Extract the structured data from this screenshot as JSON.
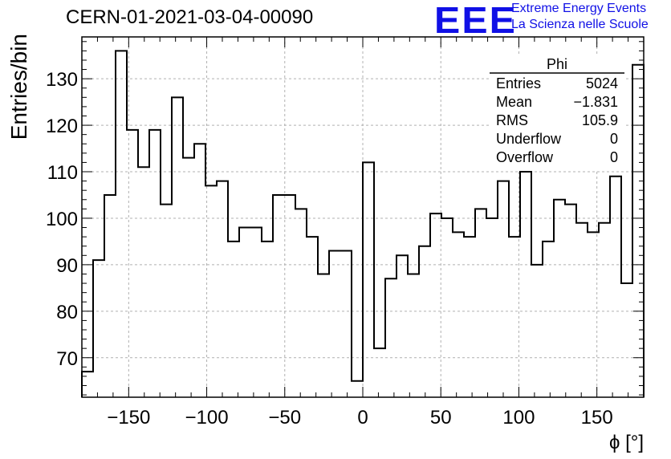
{
  "header": {
    "run_id": "CERN-01-2021-03-04-00090",
    "logo_text": "EEE",
    "logo_line1": "Extreme Energy Events",
    "logo_line2": "La Scienza nelle Scuole",
    "logo_color": "#1010e6"
  },
  "stats_box": {
    "title": "Phi",
    "rows": [
      {
        "label": "Entries",
        "value": "5024"
      },
      {
        "label": "Mean",
        "value": "−1.831"
      },
      {
        "label": "RMS",
        "value": "105.9"
      },
      {
        "label": "Underflow",
        "value": "0"
      },
      {
        "label": "Overflow",
        "value": "0"
      }
    ]
  },
  "chart_data": {
    "type": "bar",
    "style": "step-histogram",
    "title": "",
    "xlabel": "ϕ [°]",
    "ylabel": "Entries/bin",
    "xlim": [
      -180,
      180
    ],
    "ylim": [
      61.5,
      139
    ],
    "bin_edges_start": -180,
    "bin_width": 7.2,
    "values": [
      67,
      91,
      105,
      136,
      119,
      111,
      119,
      103,
      126,
      113,
      116,
      107,
      108,
      95,
      98,
      98,
      95,
      105,
      105,
      102,
      96,
      88,
      93,
      93,
      65,
      112,
      72,
      87,
      92,
      88,
      94,
      101,
      100,
      97,
      96,
      102,
      100,
      108,
      96,
      110,
      90,
      95,
      104,
      103,
      99,
      97,
      99,
      109,
      86,
      133
    ],
    "xticks": [
      -150,
      -100,
      -50,
      0,
      50,
      100,
      150
    ],
    "xtick_labels": [
      "−150",
      "−100",
      "−50",
      "0",
      "50",
      "100",
      "150"
    ],
    "yticks": [
      70,
      80,
      90,
      100,
      110,
      120,
      130
    ],
    "ytick_labels": [
      "70",
      "80",
      "90",
      "100",
      "110",
      "120",
      "130"
    ],
    "grid": true,
    "line_color": "#000000"
  }
}
